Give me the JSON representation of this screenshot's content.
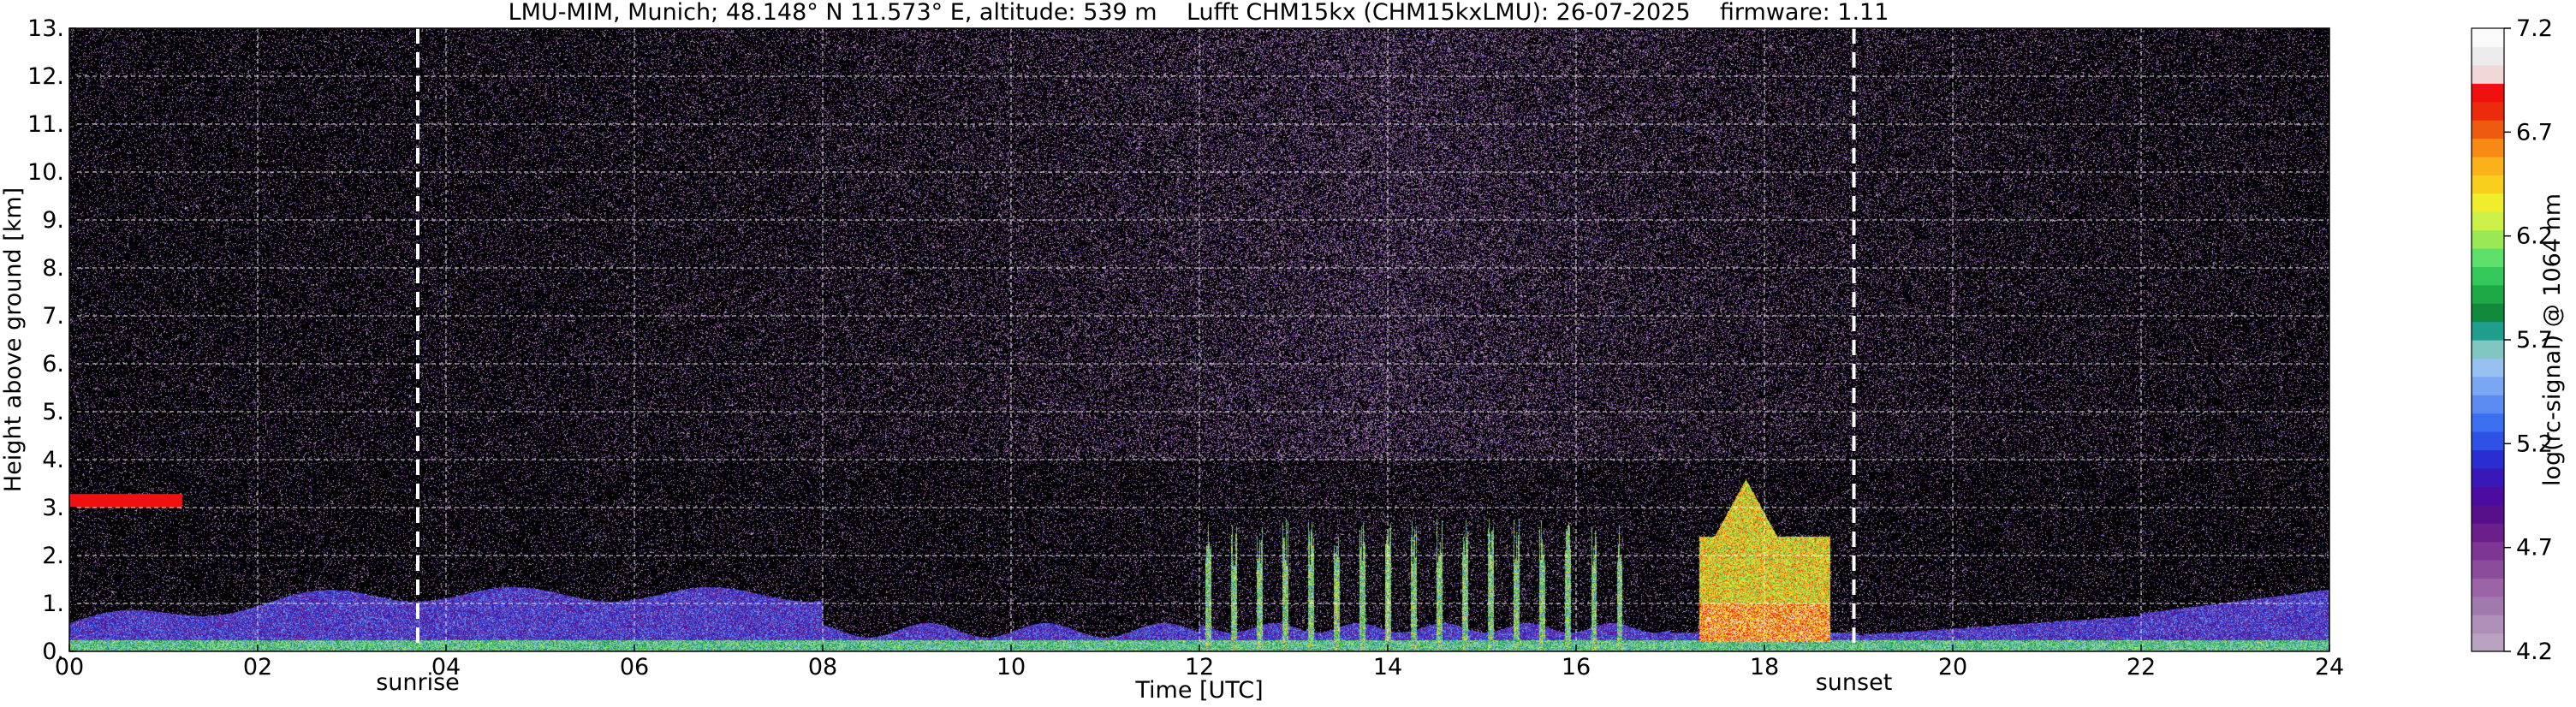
{
  "chart_data": {
    "type": "heatmap",
    "title": "LMU-MIM, Munich; 48.148° N 11.573° E, altitude: 539 m    Lufft CHM15kx (CHM15kxLMU): 26-07-2025    firmware: 1.11",
    "xlabel": "Time [UTC]",
    "ylabel": "Height above ground [km]",
    "xlim": [
      0,
      24
    ],
    "ylim": [
      0,
      13
    ],
    "x_ticks": [
      0,
      2,
      4,
      6,
      8,
      10,
      12,
      14,
      16,
      18,
      20,
      22,
      24
    ],
    "x_tick_labels": [
      "00",
      "02",
      "04",
      "06",
      "08",
      "10",
      "12",
      "14",
      "16",
      "18",
      "20",
      "22",
      "24"
    ],
    "y_ticks": [
      0,
      1,
      2,
      3,
      4,
      5,
      6,
      7,
      8,
      9,
      10,
      11,
      12,
      13
    ],
    "y_tick_labels": [
      "0.",
      "1.",
      "2.",
      "3.",
      "4.",
      "5.",
      "6.",
      "7.",
      "8.",
      "9.",
      "10.",
      "11.",
      "12.",
      "13."
    ],
    "grid": true,
    "background_color": "#000000",
    "annotations": [
      {
        "text": "sunrise",
        "x": 3.7
      },
      {
        "text": "sunset",
        "x": 18.95
      }
    ],
    "colorbar": {
      "label": "log(rc-signal) @ 1064 nm",
      "min": 4.2,
      "max": 7.2,
      "ticks": [
        4.2,
        4.7,
        5.2,
        5.7,
        6.2,
        6.7,
        7.2
      ],
      "tick_labels": [
        "4.2",
        "4.7",
        "5.2",
        "5.7",
        "6.2",
        "6.7",
        "7.2"
      ],
      "colors": [
        "#b9a3c0",
        "#ae90b8",
        "#a17aad",
        "#9a64a6",
        "#8c4c9c",
        "#7e3694",
        "#6a1f8b",
        "#57108a",
        "#4b0da1",
        "#3818b8",
        "#2a2ed0",
        "#2e52e6",
        "#3a6ff0",
        "#5c8cf2",
        "#7aa6f2",
        "#97c0f0",
        "#7fc7c0",
        "#1f9e8e",
        "#128a3c",
        "#1ea846",
        "#35c85a",
        "#5ee06a",
        "#9be857",
        "#cdf048",
        "#f0ee2c",
        "#f9cf1e",
        "#fbb21a",
        "#f68a14",
        "#ee5a10",
        "#ec2a0c",
        "#f01010",
        "#f0d8d8",
        "#ececec",
        "#fafafa"
      ]
    },
    "features": [
      {
        "kind": "boundary_layer",
        "x_start": 0,
        "x_end": 8,
        "top_km": 1.2,
        "dominant_value": 5.0
      },
      {
        "kind": "convective_plumes",
        "x_start": 12,
        "x_end": 16.5,
        "top_km": 3.0,
        "dominant_value": 6.0
      },
      {
        "kind": "cloud",
        "x_start": 17.3,
        "x_end": 18.7,
        "base_km": 0.2,
        "top_km": 3.8,
        "dominant_value": 6.6
      },
      {
        "kind": "evening_aerosol",
        "x_start": 19,
        "x_end": 24,
        "top_km": 1.6,
        "dominant_value": 5.1
      }
    ]
  }
}
